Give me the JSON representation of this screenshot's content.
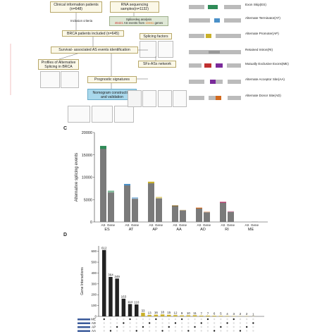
{
  "flowchart": {
    "clinical": "Clinical information patients (n=648)",
    "rnaseq": "RNA sequencing samples(n=1132)",
    "inclusion": "Inclusion criteria",
    "splice_a": "Splicesleq analysis",
    "splice_b1": "46421",
    "splice_b2": " AS events from ",
    "splice_b3": "10461",
    "splice_b4": " genes",
    "brca": "BRCA patients included (n=645)",
    "survival": "Survival- associated AS events identification",
    "profiles": "Profiles of Alternative Splicing in BRCA",
    "prognostic": "Prognostic signatures",
    "factors": "Splicing factors",
    "network": "SFs-ASs network",
    "nomogram": "Nomogram construction and validation"
  },
  "legend_items": [
    {
      "label": "Exon Skip(ES)"
    },
    {
      "label": "Alternate Terminator(AT)"
    },
    {
      "label": "Alternate Promoter(AP)"
    },
    {
      "label": "Retained Intron(RI)"
    },
    {
      "label": "Mutually Exclusive Exons(ME)"
    },
    {
      "label": "Alternate Acceptor Site(AA)"
    },
    {
      "label": "Alternate Donor Site(AD)"
    }
  ],
  "panel_c": "C",
  "panel_d": "D",
  "chart_data": [
    {
      "type": "bar",
      "ylabel": "Alternative splicing events",
      "yticks": [
        "0",
        "5000",
        "10000",
        "15000",
        "20000"
      ],
      "categories": [
        "ES",
        "AT",
        "AP",
        "AA",
        "AD",
        "RI",
        "ME"
      ],
      "sublabels": [
        "AS",
        "Gene"
      ],
      "as_values": [
        17000,
        8500,
        9000,
        3700,
        3200,
        4500,
        150
      ],
      "gene_values": [
        7000,
        5500,
        5600,
        2700,
        2300,
        2400,
        120
      ],
      "colors": [
        "#2e8b57",
        "#4a90c8",
        "#c9b02a",
        "#8b6a2a",
        "#d2691e",
        "#c0306a",
        "#999999"
      ]
    },
    {
      "type": "bar",
      "ylabel": "Gene Interactions",
      "yticks": [
        "0",
        "100",
        "200",
        "300",
        "400",
        "500",
        "600"
      ],
      "values": [
        612,
        364,
        349,
        163,
        114,
        110,
        33,
        13,
        16,
        18,
        15,
        12,
        9,
        10,
        11,
        7,
        7,
        6,
        5,
        4,
        3,
        2,
        2,
        1
      ],
      "labels": [
        "612",
        "364",
        "349",
        "163",
        "114",
        "110",
        "33",
        "13",
        "16",
        "18",
        "15",
        "12",
        "9",
        "10",
        "11",
        "7",
        "7",
        "6",
        "5",
        "4",
        "3",
        "2",
        "2",
        "1"
      ],
      "set_names": [
        "ME",
        "AD",
        "AP",
        "AA"
      ]
    }
  ]
}
